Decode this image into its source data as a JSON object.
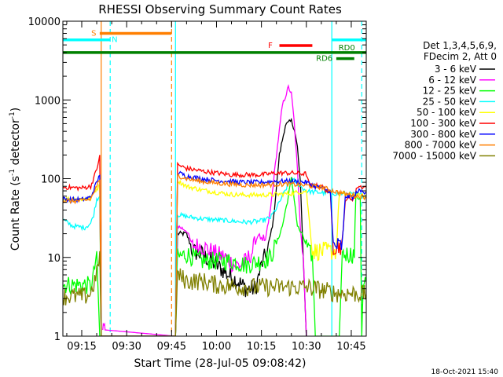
{
  "chart_data": {
    "type": "line",
    "title": "RHESSI Observing Summary Count Rates",
    "xlabel": "Start Time (28-Jul-05 09:08:42)",
    "ylabel_main": "Count Rate (s",
    "ylabel_sup1": "-1",
    "ylabel_mid": " detector",
    "ylabel_sup2": "-1",
    "ylabel_end": ")",
    "yscale": "log",
    "ylim": [
      1,
      10000
    ],
    "xlim_min": [
      548.7,
      650
    ],
    "xtick_minutes": [
      555,
      570,
      585,
      600,
      615,
      630,
      645
    ],
    "xtick_labels": [
      "09:15",
      "09:30",
      "09:45",
      "10:00",
      "10:15",
      "10:30",
      "10:45"
    ],
    "ytick_values": [
      1,
      10,
      100,
      1000,
      10000
    ],
    "ytick_labels": [
      "1",
      "10",
      "100",
      "1000",
      "10000"
    ],
    "legend_header": [
      "Det 1,3,4,5,6,9,",
      "FDecim 2, Att 0"
    ],
    "timestamp": "18-Oct-2021 15:40",
    "flags": [
      {
        "label": "S",
        "color": "#ff7f00",
        "y": 7000,
        "start": 561,
        "end": 585,
        "label_at": 559
      },
      {
        "label": "N",
        "color": "#00ffff",
        "y": 5800,
        "start": 548.7,
        "end": 564.5,
        "label_at": 566
      },
      {
        "label": "",
        "color": "#00ffff",
        "y": 5800,
        "start": 638.5,
        "end": 650,
        "label_at": 0
      },
      {
        "label": "F",
        "color": "#ff0000",
        "y": 4900,
        "start": 621,
        "end": 632,
        "label_at": 618
      },
      {
        "label": "RD0",
        "color": "#008000",
        "y": 4000,
        "start": 548.7,
        "end": 650,
        "label_at": 643.5
      },
      {
        "label": "RD6",
        "color": "#008000",
        "y": 3350,
        "start": 640,
        "end": 646,
        "label_at": 636
      }
    ],
    "vlines": [
      {
        "color": "#ff7f00",
        "x": 561.5,
        "dashed": false
      },
      {
        "color": "#00ffff",
        "x": 564.5,
        "dashed": true
      },
      {
        "color": "#ff7f00",
        "x": 585,
        "dashed": true
      },
      {
        "color": "#00ffff",
        "x": 586.3,
        "dashed": false
      },
      {
        "color": "#00ffff",
        "x": 638.5,
        "dashed": false
      },
      {
        "color": "#00ffff",
        "x": 648.5,
        "dashed": true
      }
    ],
    "series": [
      {
        "name": "3 - 6 keV",
        "color": "#000000",
        "values": [
          [
            586.3,
            1
          ],
          [
            587,
            20
          ],
          [
            590,
            20
          ],
          [
            592,
            12
          ],
          [
            595,
            11
          ],
          [
            600,
            8
          ],
          [
            604,
            6
          ],
          [
            607,
            5
          ],
          [
            610,
            4
          ],
          [
            613,
            4
          ],
          [
            615,
            8
          ],
          [
            617,
            12
          ],
          [
            619,
            30
          ],
          [
            621,
            200
          ],
          [
            623,
            480
          ],
          [
            625,
            540
          ],
          [
            626,
            430
          ],
          [
            627,
            250
          ],
          [
            628,
            90
          ],
          [
            629,
            9
          ],
          [
            630,
            1
          ]
        ]
      },
      {
        "name": "6 - 12 keV",
        "color": "#ff00ff",
        "values": [
          [
            562,
            1.2
          ],
          [
            562.4,
            1.7
          ],
          [
            562.8,
            1.2
          ],
          [
            586.3,
            1
          ],
          [
            587,
            25
          ],
          [
            590,
            22
          ],
          [
            592,
            14
          ],
          [
            595,
            14
          ],
          [
            600,
            11
          ],
          [
            603,
            10
          ],
          [
            606,
            8
          ],
          [
            608,
            8
          ],
          [
            610,
            9
          ],
          [
            612,
            12
          ],
          [
            614,
            20
          ],
          [
            616,
            14
          ],
          [
            618,
            40
          ],
          [
            620,
            200
          ],
          [
            622,
            850
          ],
          [
            624,
            1450
          ],
          [
            625,
            1200
          ],
          [
            626,
            500
          ],
          [
            627,
            130
          ],
          [
            628,
            25
          ],
          [
            629,
            10
          ],
          [
            630,
            1
          ]
        ]
      },
      {
        "name": "12 - 25 keV",
        "color": "#00ff00",
        "values": [
          [
            548.7,
            4.5
          ],
          [
            556,
            4.5
          ],
          [
            558,
            4.3
          ],
          [
            559,
            6
          ],
          [
            560,
            12
          ],
          [
            561,
            1
          ],
          [
            586.3,
            1
          ],
          [
            587,
            10
          ],
          [
            590,
            11
          ],
          [
            595,
            9
          ],
          [
            600,
            9
          ],
          [
            605,
            9
          ],
          [
            610,
            8
          ],
          [
            615,
            9
          ],
          [
            618,
            10
          ],
          [
            620,
            15
          ],
          [
            622,
            25
          ],
          [
            624,
            60
          ],
          [
            625,
            100
          ],
          [
            626,
            55
          ],
          [
            627,
            25
          ],
          [
            629,
            18
          ],
          [
            631,
            11
          ],
          [
            632,
            11
          ],
          [
            633,
            1
          ],
          [
            641,
            1
          ],
          [
            642,
            11
          ],
          [
            646,
            11
          ],
          [
            646.5,
            60
          ],
          [
            648,
            55
          ],
          [
            648.5,
            1
          ],
          [
            649,
            5
          ],
          [
            650,
            5
          ]
        ]
      },
      {
        "name": "25 - 50 keV",
        "color": "#00ffff",
        "values": [
          [
            548.7,
            30
          ],
          [
            552,
            25
          ],
          [
            556,
            24
          ],
          [
            558,
            27
          ],
          [
            559,
            35
          ],
          [
            560,
            55
          ],
          [
            561,
            60
          ],
          [
            561.5,
            1
          ],
          [
            586.3,
            1
          ],
          [
            587,
            35
          ],
          [
            590,
            33
          ],
          [
            595,
            31
          ],
          [
            600,
            30
          ],
          [
            605,
            29
          ],
          [
            610,
            28
          ],
          [
            615,
            29
          ],
          [
            618,
            32
          ],
          [
            620,
            42
          ],
          [
            622,
            60
          ],
          [
            624,
            85
          ],
          [
            626,
            95
          ],
          [
            628,
            80
          ],
          [
            630,
            70
          ],
          [
            632,
            68
          ],
          [
            636,
            66
          ],
          [
            640,
            65
          ],
          [
            644,
            64
          ],
          [
            648,
            62
          ],
          [
            650,
            60
          ]
        ]
      },
      {
        "name": "50 - 100 keV",
        "color": "#ffff00",
        "values": [
          [
            548.7,
            55
          ],
          [
            555,
            55
          ],
          [
            558,
            57
          ],
          [
            560,
            75
          ],
          [
            561,
            80
          ],
          [
            561.5,
            1
          ],
          [
            586.3,
            1
          ],
          [
            587,
            95
          ],
          [
            590,
            80
          ],
          [
            595,
            72
          ],
          [
            600,
            67
          ],
          [
            605,
            63
          ],
          [
            610,
            62
          ],
          [
            615,
            62
          ],
          [
            620,
            63
          ],
          [
            625,
            65
          ],
          [
            630,
            70
          ],
          [
            632,
            12
          ],
          [
            636,
            12
          ],
          [
            640,
            12
          ],
          [
            641,
            65
          ],
          [
            645,
            62
          ],
          [
            650,
            60
          ]
        ]
      },
      {
        "name": "100 - 300 keV",
        "color": "#ff0000",
        "values": [
          [
            548.7,
            78
          ],
          [
            555,
            76
          ],
          [
            558,
            80
          ],
          [
            560,
            130
          ],
          [
            561,
            200
          ],
          [
            561.5,
            1
          ],
          [
            586.3,
            1
          ],
          [
            587,
            150
          ],
          [
            590,
            135
          ],
          [
            595,
            125
          ],
          [
            600,
            118
          ],
          [
            605,
            112
          ],
          [
            610,
            112
          ],
          [
            615,
            112
          ],
          [
            620,
            118
          ],
          [
            625,
            118
          ],
          [
            630,
            115
          ],
          [
            631,
            82
          ],
          [
            635,
            80
          ],
          [
            638,
            65
          ],
          [
            639,
            14
          ],
          [
            642,
            14
          ],
          [
            643,
            55
          ],
          [
            646,
            56
          ],
          [
            647,
            80
          ],
          [
            650,
            78
          ]
        ]
      },
      {
        "name": "300 - 800 keV",
        "color": "#0000ff",
        "values": [
          [
            548.7,
            55
          ],
          [
            555,
            54
          ],
          [
            558,
            58
          ],
          [
            560,
            90
          ],
          [
            561,
            110
          ],
          [
            561.5,
            1
          ],
          [
            586.3,
            1
          ],
          [
            587,
            120
          ],
          [
            590,
            108
          ],
          [
            595,
            100
          ],
          [
            600,
            95
          ],
          [
            605,
            92
          ],
          [
            610,
            90
          ],
          [
            615,
            90
          ],
          [
            620,
            93
          ],
          [
            625,
            93
          ],
          [
            630,
            90
          ],
          [
            633,
            80
          ],
          [
            638,
            70
          ],
          [
            639,
            14
          ],
          [
            642,
            14
          ],
          [
            643,
            60
          ],
          [
            646,
            58
          ],
          [
            647,
            70
          ],
          [
            650,
            68
          ]
        ]
      },
      {
        "name": "800 - 7000 keV",
        "color": "#ff7f00",
        "values": [
          [
            548.7,
            52
          ],
          [
            555,
            52
          ],
          [
            558,
            55
          ],
          [
            560,
            80
          ],
          [
            561,
            95
          ],
          [
            561.5,
            1
          ],
          [
            586.3,
            1
          ],
          [
            587,
            110
          ],
          [
            590,
            100
          ],
          [
            595,
            92
          ],
          [
            600,
            88
          ],
          [
            605,
            85
          ],
          [
            610,
            83
          ],
          [
            615,
            83
          ],
          [
            620,
            85
          ],
          [
            625,
            85
          ],
          [
            630,
            82
          ],
          [
            635,
            78
          ],
          [
            640,
            68
          ],
          [
            645,
            62
          ],
          [
            650,
            58
          ]
        ]
      },
      {
        "name": "7000 - 15000 keV",
        "color": "#808000",
        "values": [
          [
            548.7,
            3.2
          ],
          [
            556,
            3.2
          ],
          [
            558,
            3.5
          ],
          [
            560,
            6
          ],
          [
            561,
            12
          ],
          [
            561.5,
            1
          ],
          [
            586.3,
            1
          ],
          [
            587,
            6
          ],
          [
            590,
            5
          ],
          [
            595,
            5
          ],
          [
            600,
            4.5
          ],
          [
            605,
            4.3
          ],
          [
            610,
            4.2
          ],
          [
            615,
            4.2
          ],
          [
            620,
            4.2
          ],
          [
            625,
            4.2
          ],
          [
            630,
            4.2
          ],
          [
            633,
            4
          ],
          [
            636,
            3.8
          ],
          [
            640,
            3.5
          ],
          [
            645,
            3.5
          ],
          [
            650,
            3.4
          ]
        ]
      }
    ]
  }
}
